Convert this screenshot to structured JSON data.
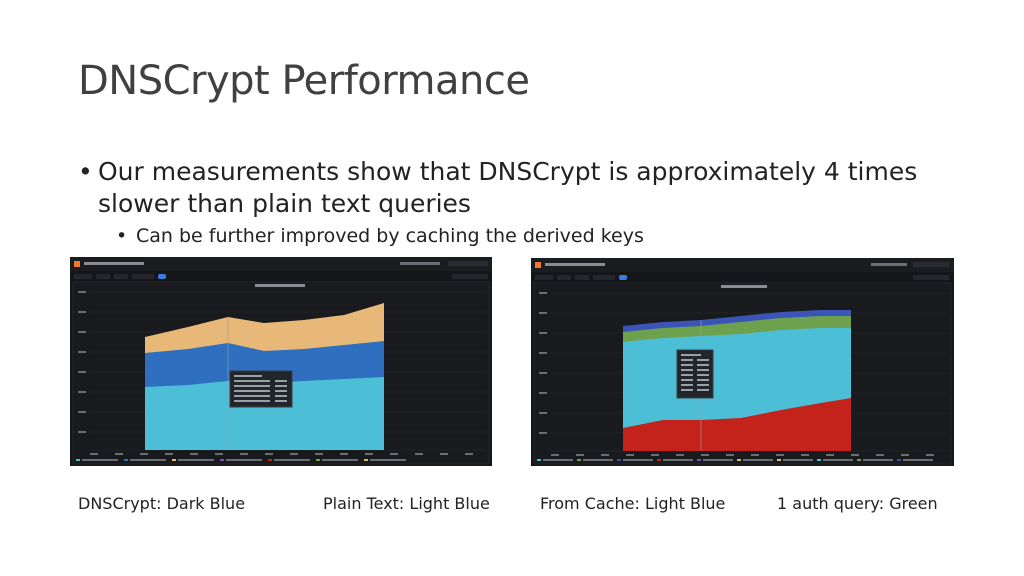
{
  "slide": {
    "title": "DNSCrypt Performance",
    "bullet_main": "Our measurements show that DNSCrypt is approximately 4 times slower than plain text queries",
    "bullet_sub": "Can be further improved by caching the derived keys"
  },
  "screenshots": {
    "left": {
      "app_title": "DNS Resolvers / Resolver Graphs",
      "panel_title": "Timeseries",
      "colors": [
        "#e8b879",
        "#2f6fbf",
        "#4cbfd6"
      ]
    },
    "right": {
      "app_title": "DNS Resolvers / Resolver Graphs",
      "panel_title": "Stacked Graph",
      "colors": [
        "#3a54b8",
        "#6ea14d",
        "#4cbfd6",
        "#c4231c"
      ]
    }
  },
  "captions": {
    "dnscrypt": "DNSCrypt: Dark Blue",
    "plaintext": "Plain Text: Light Blue",
    "cache": "From Cache: Light Blue",
    "auth": "1 auth query: Green"
  }
}
